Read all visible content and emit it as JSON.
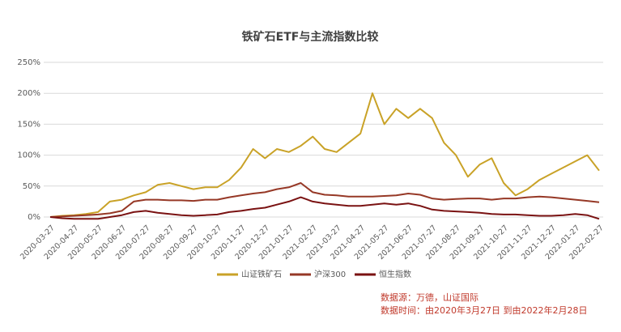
{
  "chart_data": {
    "type": "line",
    "title": "铁矿石ETF与主流指数比较",
    "categories": [
      "2020-03-27",
      null,
      "2020-04-27",
      null,
      "2020-05-27",
      null,
      "2020-06-27",
      null,
      "2020-07-27",
      null,
      "2020-08-27",
      null,
      "2020-09-27",
      null,
      "2020-10-27",
      null,
      "2020-11-27",
      null,
      "2020-12-27",
      null,
      "2021-01-27",
      null,
      "2021-02-27",
      null,
      "2021-03-27",
      null,
      "2021-04-27",
      null,
      "2021-05-27",
      null,
      "2021-06-27",
      null,
      "2021-07-27",
      null,
      "2021-08-27",
      null,
      "2021-09-27",
      null,
      "2021-10-27",
      null,
      "2021-11-27",
      null,
      "2021-12-27",
      null,
      "2022-01-27",
      null,
      "2022-02-27"
    ],
    "series": [
      {
        "name": "山证铁矿石",
        "color": "#c9a227",
        "values": [
          0,
          2,
          3,
          5,
          8,
          25,
          28,
          35,
          40,
          52,
          55,
          50,
          45,
          48,
          48,
          60,
          80,
          110,
          95,
          110,
          105,
          115,
          130,
          110,
          105,
          120,
          135,
          200,
          150,
          175,
          160,
          175,
          160,
          120,
          100,
          65,
          85,
          95,
          55,
          35,
          45,
          60,
          70,
          80,
          90,
          100,
          75
        ]
      },
      {
        "name": "沪深300",
        "color": "#963826",
        "values": [
          0,
          1,
          2,
          3,
          4,
          6,
          10,
          25,
          28,
          28,
          27,
          27,
          26,
          28,
          28,
          32,
          35,
          38,
          40,
          45,
          48,
          55,
          40,
          36,
          35,
          33,
          33,
          33,
          34,
          35,
          38,
          36,
          30,
          28,
          29,
          30,
          30,
          28,
          30,
          30,
          32,
          33,
          32,
          30,
          28,
          26,
          24
        ]
      },
      {
        "name": "恒生指数",
        "color": "#7a1212",
        "values": [
          0,
          -2,
          -3,
          -3,
          -3,
          0,
          3,
          8,
          10,
          7,
          5,
          3,
          2,
          3,
          4,
          8,
          10,
          13,
          15,
          20,
          25,
          32,
          25,
          22,
          20,
          18,
          18,
          20,
          22,
          20,
          22,
          18,
          12,
          10,
          9,
          8,
          7,
          5,
          4,
          4,
          3,
          2,
          2,
          3,
          5,
          3,
          -3
        ]
      }
    ],
    "ylim": [
      0,
      250
    ],
    "yticks": [
      {
        "value": 0,
        "label": "0%"
      },
      {
        "value": 50,
        "label": "50%"
      },
      {
        "value": 100,
        "label": "100%"
      },
      {
        "value": 150,
        "label": "150%"
      },
      {
        "value": 200,
        "label": "200%"
      },
      {
        "value": 250,
        "label": "250%"
      }
    ],
    "grid": true,
    "legend": "bottom",
    "annotations": [
      "数据源：万德，山证国际",
      "数据时间：由2020年3月27日 到由2022年2月28日"
    ]
  }
}
